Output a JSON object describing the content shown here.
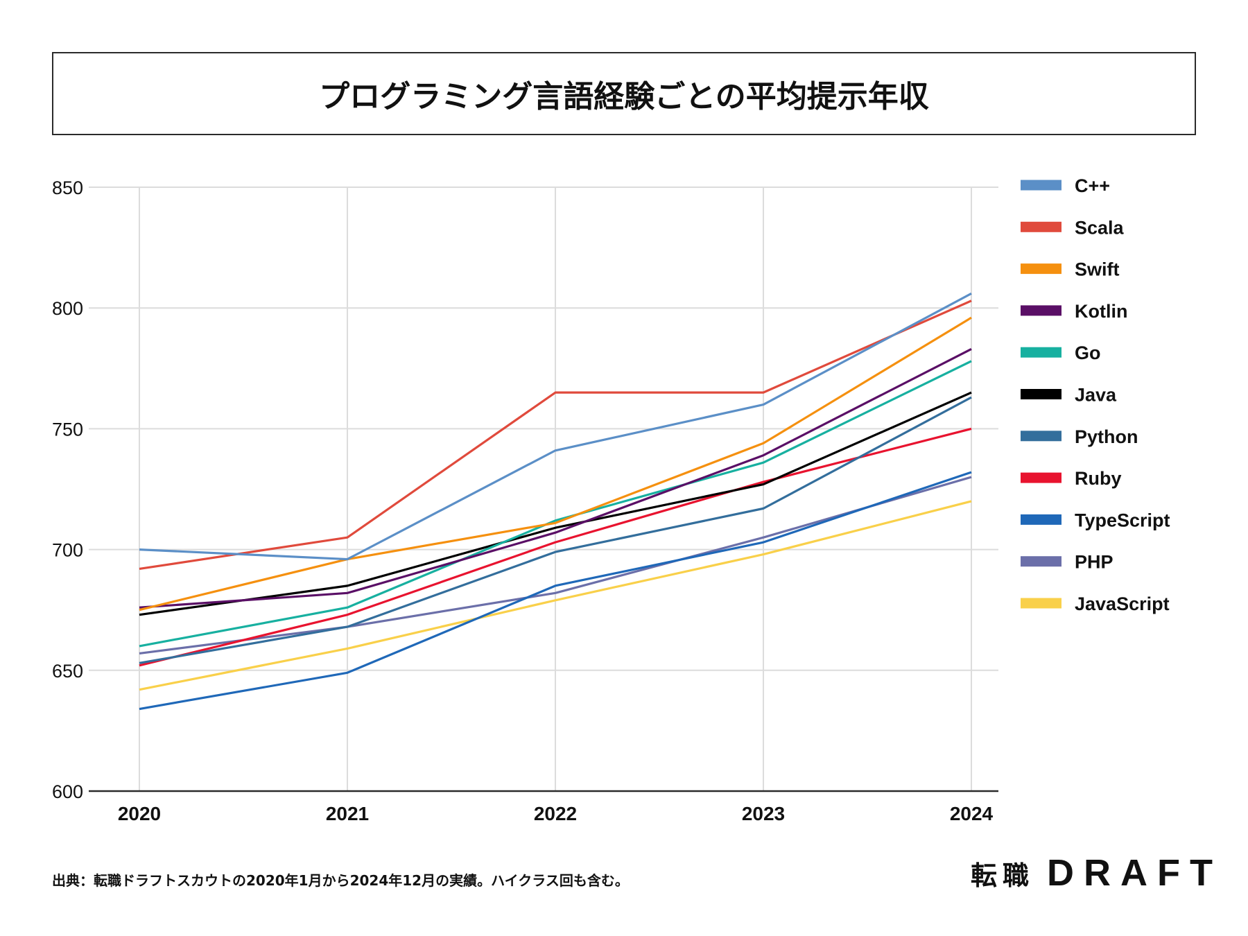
{
  "title": "プログラミング言語経験ごとの平均提示年収",
  "footer": {
    "source_note": "出典：転職ドラフトスカウトの2020年1月から2024年12月の実績。ハイクラス回も含む。",
    "logo_jp": "転職",
    "logo_en": "DRAFT"
  },
  "chart_data": {
    "type": "line",
    "title": "プログラミング言語経験ごとの平均提示年収",
    "xlabel": "",
    "ylabel": "",
    "categories": [
      "2020",
      "2021",
      "2022",
      "2023",
      "2024"
    ],
    "ylim": [
      600,
      850
    ],
    "yticks": [
      600,
      650,
      700,
      750,
      800,
      850
    ],
    "grid": true,
    "legend_position": "right",
    "series": [
      {
        "name": "C++",
        "color": "#5b8fc7",
        "values": [
          700,
          696,
          741,
          760,
          806
        ]
      },
      {
        "name": "Scala",
        "color": "#e04a3c",
        "values": [
          692,
          705,
          765,
          765,
          803
        ]
      },
      {
        "name": "Swift",
        "color": "#f5900f",
        "values": [
          675,
          696,
          711,
          744,
          796
        ]
      },
      {
        "name": "Kotlin",
        "color": "#5a0f66",
        "values": [
          676,
          682,
          707,
          739,
          783
        ]
      },
      {
        "name": "Go",
        "color": "#17b0a0",
        "values": [
          660,
          676,
          712,
          736,
          778
        ]
      },
      {
        "name": "Java",
        "color": "#000000",
        "values": [
          673,
          685,
          709,
          727,
          765
        ]
      },
      {
        "name": "Python",
        "color": "#336e9c",
        "values": [
          653,
          668,
          699,
          717,
          763
        ]
      },
      {
        "name": "Ruby",
        "color": "#e8132f",
        "values": [
          652,
          673,
          703,
          728,
          750
        ]
      },
      {
        "name": "TypeScript",
        "color": "#1f68b8",
        "values": [
          634,
          649,
          685,
          703,
          732
        ]
      },
      {
        "name": "PHP",
        "color": "#6b6fa9",
        "values": [
          657,
          668,
          682,
          705,
          730
        ]
      },
      {
        "name": "JavaScript",
        "color": "#f9d04a",
        "values": [
          642,
          659,
          679,
          698,
          720
        ]
      }
    ]
  }
}
